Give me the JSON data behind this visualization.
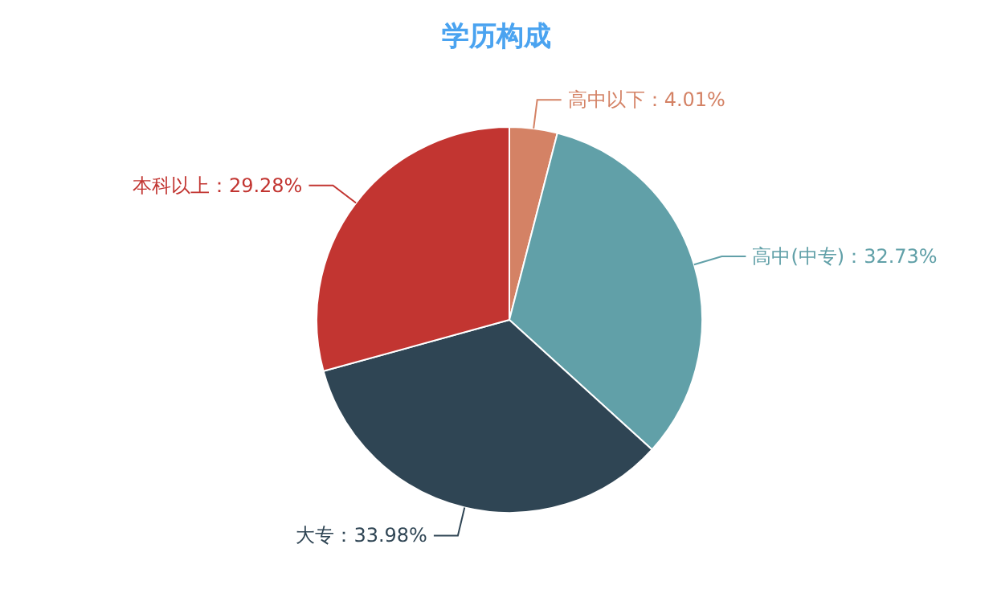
{
  "chart_data": {
    "type": "pie",
    "title": "学历构成",
    "categories": [
      "高中以下",
      "高中(中专)",
      "大专",
      "本科以上"
    ],
    "values": [
      4.01,
      32.73,
      33.98,
      29.28
    ],
    "value_labels": [
      "：4.01%",
      "：32.73%",
      "：33.98%",
      "：29.28%"
    ],
    "colors": [
      "#d48265",
      "#61a0a8",
      "#2f4554",
      "#c23531"
    ]
  }
}
